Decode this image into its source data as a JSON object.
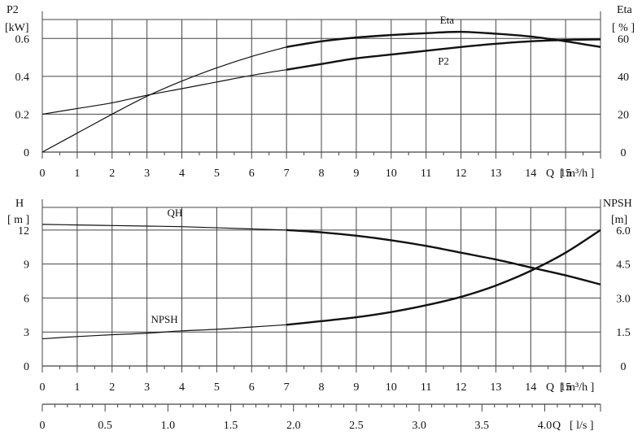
{
  "chart_data": [
    {
      "type": "line",
      "panel": "top",
      "x": {
        "label": "Q",
        "unit": "[ m³/h ]",
        "range": [
          0,
          16
        ],
        "ticks": [
          0,
          1,
          2,
          3,
          4,
          5,
          6,
          7,
          8,
          9,
          10,
          11,
          12,
          13,
          14,
          15
        ]
      },
      "y_left": {
        "label": "P2",
        "unit": "[kW]",
        "range": [
          0,
          0.7
        ],
        "ticks": [
          0,
          0.2,
          0.4,
          0.6
        ],
        "tick_labels": [
          "0",
          "0.2",
          "0.4",
          "0.6"
        ]
      },
      "y_right": {
        "label": "Eta",
        "unit": "[ % ]",
        "range": [
          0,
          70
        ],
        "ticks": [
          0,
          20,
          40,
          60
        ],
        "tick_labels": [
          "0",
          "20",
          "40",
          "60"
        ]
      },
      "grid": true,
      "series": [
        {
          "name": "Eta",
          "axis": "right",
          "x": [
            0,
            1,
            2,
            3,
            4,
            5,
            6,
            7,
            8,
            9,
            10,
            11,
            12,
            13,
            14,
            15,
            16
          ],
          "y": [
            0,
            10,
            20,
            29.5,
            37.5,
            44.5,
            50.5,
            55.5,
            58.5,
            60.5,
            61.8,
            62.8,
            63.5,
            62.5,
            61,
            58.5,
            55.5
          ]
        },
        {
          "name": "P2",
          "axis": "left",
          "x": [
            0,
            1,
            2,
            3,
            4,
            5,
            6,
            7,
            8,
            9,
            10,
            11,
            12,
            13,
            14,
            15,
            16
          ],
          "y": [
            0.2,
            0.23,
            0.26,
            0.3,
            0.335,
            0.37,
            0.405,
            0.435,
            0.465,
            0.495,
            0.515,
            0.535,
            0.555,
            0.572,
            0.585,
            0.592,
            0.595
          ]
        }
      ]
    },
    {
      "type": "line",
      "panel": "bottom",
      "x": {
        "label": "Q",
        "unit": "[ m³/h ]",
        "range": [
          0,
          16
        ],
        "ticks": [
          0,
          1,
          2,
          3,
          4,
          5,
          6,
          7,
          8,
          9,
          10,
          11,
          12,
          13,
          14,
          15
        ]
      },
      "x_secondary": {
        "label": "Q",
        "unit": "[ l/s ]",
        "range": [
          0,
          4.444
        ],
        "ticks": [
          0,
          0.5,
          1.0,
          1.5,
          2.0,
          2.5,
          3.0,
          3.5,
          4.0
        ],
        "tick_labels": [
          "0",
          "0.5",
          "1.0",
          "1.5",
          "2.0",
          "2.5",
          "3.0",
          "3.5",
          "4.0"
        ]
      },
      "y_left": {
        "label": "H",
        "unit": "[ m ]",
        "range": [
          0,
          14
        ],
        "ticks": [
          0,
          3,
          6,
          9,
          12
        ],
        "tick_labels": [
          "0",
          "3",
          "6",
          "9",
          "12"
        ]
      },
      "y_right": {
        "label": "NPSH",
        "unit": "[m]",
        "range": [
          0,
          7
        ],
        "ticks": [
          0,
          1.5,
          3,
          4.5,
          6
        ],
        "tick_labels": [
          "0",
          "1.5",
          "3.0",
          "4.5",
          "6.0"
        ]
      },
      "grid": true,
      "series": [
        {
          "name": "QH",
          "axis": "left",
          "x": [
            0,
            1,
            2,
            3,
            4,
            5,
            6,
            7,
            8,
            9,
            10,
            11,
            12,
            13,
            14,
            15,
            16
          ],
          "y": [
            12.5,
            12.45,
            12.4,
            12.35,
            12.3,
            12.2,
            12.1,
            12.0,
            11.8,
            11.5,
            11.1,
            10.6,
            10.0,
            9.4,
            8.7,
            8.0,
            7.2
          ]
        },
        {
          "name": "NPSH",
          "axis": "right",
          "x": [
            0,
            1,
            2,
            3,
            4,
            5,
            6,
            7,
            8,
            9,
            10,
            11,
            12,
            13,
            14,
            15,
            16
          ],
          "y": [
            1.2,
            1.3,
            1.38,
            1.45,
            1.55,
            1.62,
            1.72,
            1.82,
            1.98,
            2.15,
            2.38,
            2.68,
            3.05,
            3.55,
            4.2,
            5.0,
            6.0
          ]
        }
      ]
    }
  ]
}
